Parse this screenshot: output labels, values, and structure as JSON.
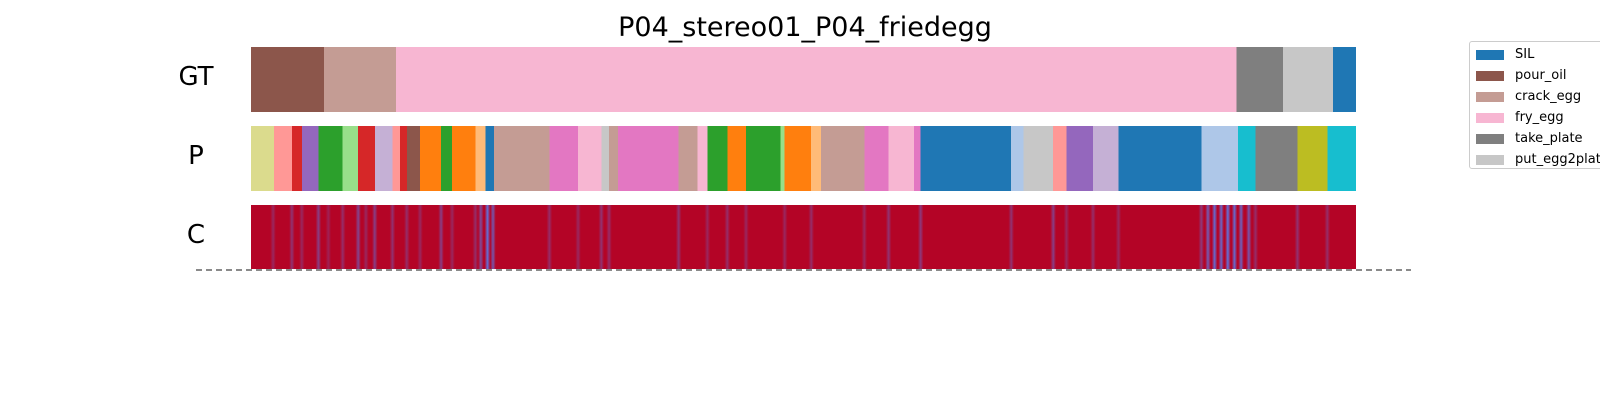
{
  "chart_data": {
    "type": "segmentation",
    "title": "P04_stereo01_P04_friedegg",
    "rows": [
      "GT",
      "P",
      "C"
    ],
    "x_range": [
      0,
      1
    ],
    "legend_position": "top-right",
    "legend": [
      {
        "label": "SIL",
        "color": "#1f77b4"
      },
      {
        "label": "pour_oil",
        "color": "#8c564b"
      },
      {
        "label": "crack_egg",
        "color": "#c49c94"
      },
      {
        "label": "fry_egg",
        "color": "#f7b6d2"
      },
      {
        "label": "take_plate",
        "color": "#7f7f7f"
      },
      {
        "label": "put_egg2plat",
        "color": "#c7c7c7"
      }
    ],
    "gt_segments": [
      {
        "start": 0.0,
        "end": 0.066,
        "color": "#8c564b"
      },
      {
        "start": 0.066,
        "end": 0.131,
        "color": "#c49c94"
      },
      {
        "start": 0.131,
        "end": 0.892,
        "color": "#f7b6d2"
      },
      {
        "start": 0.892,
        "end": 0.934,
        "color": "#7f7f7f"
      },
      {
        "start": 0.934,
        "end": 0.979,
        "color": "#c7c7c7"
      },
      {
        "start": 0.979,
        "end": 1.0,
        "color": "#1f77b4"
      }
    ],
    "pred_segments": [
      {
        "start": 0.0,
        "end": 0.021,
        "color": "#dbdb8d"
      },
      {
        "start": 0.021,
        "end": 0.037,
        "color": "#ff9896"
      },
      {
        "start": 0.037,
        "end": 0.046,
        "color": "#d62728"
      },
      {
        "start": 0.046,
        "end": 0.061,
        "color": "#9467bd"
      },
      {
        "start": 0.061,
        "end": 0.083,
        "color": "#2ca02c"
      },
      {
        "start": 0.083,
        "end": 0.097,
        "color": "#98df8a"
      },
      {
        "start": 0.097,
        "end": 0.112,
        "color": "#d62728"
      },
      {
        "start": 0.112,
        "end": 0.128,
        "color": "#c5b0d5"
      },
      {
        "start": 0.128,
        "end": 0.135,
        "color": "#ff9896"
      },
      {
        "start": 0.135,
        "end": 0.141,
        "color": "#d62728"
      },
      {
        "start": 0.141,
        "end": 0.153,
        "color": "#8c564b"
      },
      {
        "start": 0.153,
        "end": 0.172,
        "color": "#ff7f0e"
      },
      {
        "start": 0.172,
        "end": 0.182,
        "color": "#2ca02c"
      },
      {
        "start": 0.182,
        "end": 0.203,
        "color": "#ff7f0e"
      },
      {
        "start": 0.203,
        "end": 0.212,
        "color": "#ffbb78"
      },
      {
        "start": 0.212,
        "end": 0.22,
        "color": "#1f77b4"
      },
      {
        "start": 0.22,
        "end": 0.27,
        "color": "#c49c94"
      },
      {
        "start": 0.27,
        "end": 0.296,
        "color": "#e377c2"
      },
      {
        "start": 0.296,
        "end": 0.317,
        "color": "#f7b6d2"
      },
      {
        "start": 0.317,
        "end": 0.324,
        "color": "#c7c7c7"
      },
      {
        "start": 0.324,
        "end": 0.332,
        "color": "#c49c94"
      },
      {
        "start": 0.332,
        "end": 0.387,
        "color": "#e377c2"
      },
      {
        "start": 0.387,
        "end": 0.404,
        "color": "#c49c94"
      },
      {
        "start": 0.404,
        "end": 0.413,
        "color": "#f7b6d2"
      },
      {
        "start": 0.413,
        "end": 0.431,
        "color": "#2ca02c"
      },
      {
        "start": 0.431,
        "end": 0.448,
        "color": "#ff7f0e"
      },
      {
        "start": 0.448,
        "end": 0.479,
        "color": "#2ca02c"
      },
      {
        "start": 0.479,
        "end": 0.483,
        "color": "#98df8a"
      },
      {
        "start": 0.483,
        "end": 0.507,
        "color": "#ff7f0e"
      },
      {
        "start": 0.507,
        "end": 0.516,
        "color": "#ffbb78"
      },
      {
        "start": 0.516,
        "end": 0.555,
        "color": "#c49c94"
      },
      {
        "start": 0.555,
        "end": 0.577,
        "color": "#e377c2"
      },
      {
        "start": 0.577,
        "end": 0.6,
        "color": "#f7b6d2"
      },
      {
        "start": 0.6,
        "end": 0.606,
        "color": "#e377c2"
      },
      {
        "start": 0.606,
        "end": 0.688,
        "color": "#1f77b4"
      },
      {
        "start": 0.688,
        "end": 0.699,
        "color": "#aec7e8"
      },
      {
        "start": 0.699,
        "end": 0.726,
        "color": "#c7c7c7"
      },
      {
        "start": 0.726,
        "end": 0.738,
        "color": "#ff9896"
      },
      {
        "start": 0.738,
        "end": 0.762,
        "color": "#9467bd"
      },
      {
        "start": 0.762,
        "end": 0.785,
        "color": "#c5b0d5"
      },
      {
        "start": 0.785,
        "end": 0.86,
        "color": "#1f77b4"
      },
      {
        "start": 0.86,
        "end": 0.893,
        "color": "#aec7e8"
      },
      {
        "start": 0.893,
        "end": 0.909,
        "color": "#17becf"
      },
      {
        "start": 0.909,
        "end": 0.947,
        "color": "#7f7f7f"
      },
      {
        "start": 0.947,
        "end": 0.974,
        "color": "#bcbd22"
      },
      {
        "start": 0.974,
        "end": 1.0,
        "color": "#17becf"
      }
    ],
    "confidence_base_color": "#b40426",
    "confidence_low_color": "#5a78e4",
    "confidence_dips": [
      {
        "x": 0.02,
        "level": 0.3
      },
      {
        "x": 0.037,
        "level": 0.4
      },
      {
        "x": 0.046,
        "level": 0.3
      },
      {
        "x": 0.061,
        "level": 0.5
      },
      {
        "x": 0.07,
        "level": 0.25
      },
      {
        "x": 0.083,
        "level": 0.35
      },
      {
        "x": 0.097,
        "level": 0.55
      },
      {
        "x": 0.104,
        "level": 0.3
      },
      {
        "x": 0.112,
        "level": 0.5
      },
      {
        "x": 0.128,
        "level": 0.4
      },
      {
        "x": 0.141,
        "level": 0.35
      },
      {
        "x": 0.153,
        "level": 0.3
      },
      {
        "x": 0.172,
        "level": 0.5
      },
      {
        "x": 0.182,
        "level": 0.3
      },
      {
        "x": 0.203,
        "level": 0.35
      },
      {
        "x": 0.208,
        "level": 0.6
      },
      {
        "x": 0.214,
        "level": 0.95
      },
      {
        "x": 0.219,
        "level": 0.7
      },
      {
        "x": 0.27,
        "level": 0.35
      },
      {
        "x": 0.296,
        "level": 0.3
      },
      {
        "x": 0.317,
        "level": 0.4
      },
      {
        "x": 0.324,
        "level": 0.35
      },
      {
        "x": 0.387,
        "level": 0.4
      },
      {
        "x": 0.413,
        "level": 0.3
      },
      {
        "x": 0.431,
        "level": 0.35
      },
      {
        "x": 0.448,
        "level": 0.3
      },
      {
        "x": 0.483,
        "level": 0.3
      },
      {
        "x": 0.507,
        "level": 0.35
      },
      {
        "x": 0.555,
        "level": 0.3
      },
      {
        "x": 0.577,
        "level": 0.4
      },
      {
        "x": 0.606,
        "level": 0.45
      },
      {
        "x": 0.688,
        "level": 0.4
      },
      {
        "x": 0.726,
        "level": 0.5
      },
      {
        "x": 0.738,
        "level": 0.3
      },
      {
        "x": 0.762,
        "level": 0.35
      },
      {
        "x": 0.785,
        "level": 0.3
      },
      {
        "x": 0.86,
        "level": 0.45
      },
      {
        "x": 0.866,
        "level": 0.75
      },
      {
        "x": 0.872,
        "level": 0.9
      },
      {
        "x": 0.878,
        "level": 0.85
      },
      {
        "x": 0.884,
        "level": 0.95
      },
      {
        "x": 0.89,
        "level": 0.9
      },
      {
        "x": 0.896,
        "level": 0.8
      },
      {
        "x": 0.903,
        "level": 0.7
      },
      {
        "x": 0.909,
        "level": 0.35
      },
      {
        "x": 0.947,
        "level": 0.4
      },
      {
        "x": 0.974,
        "level": 0.35
      }
    ]
  }
}
